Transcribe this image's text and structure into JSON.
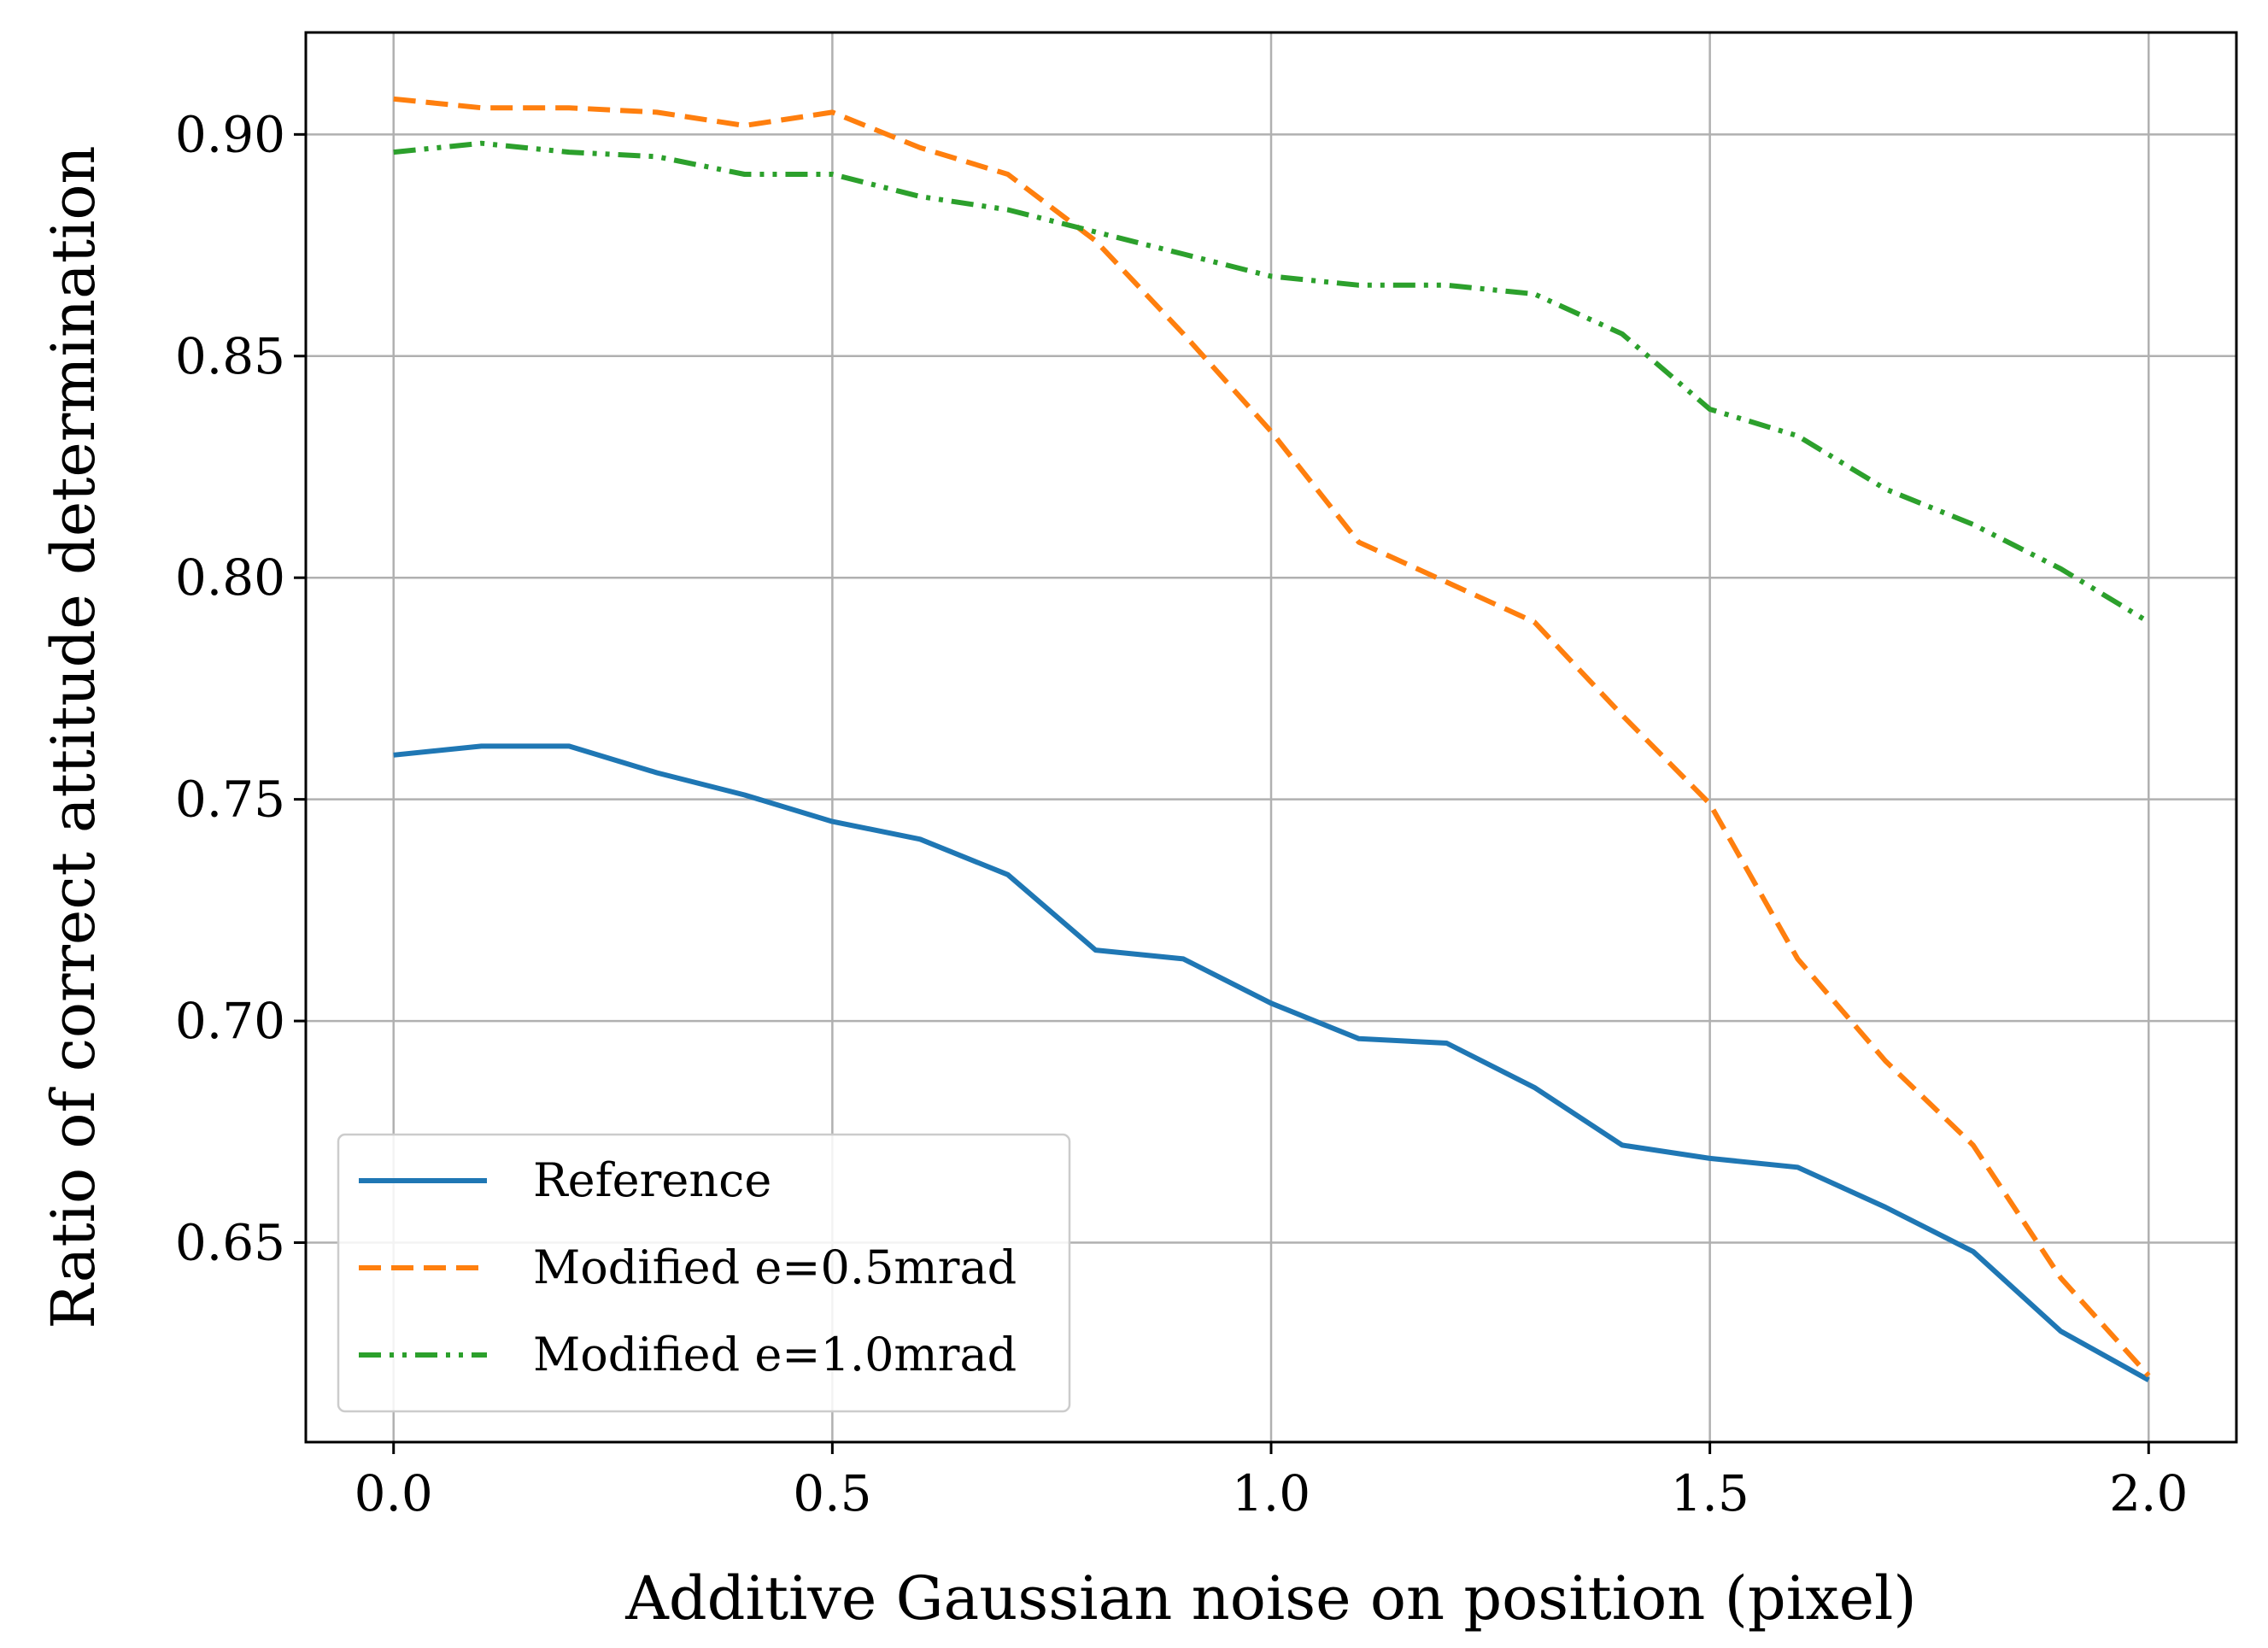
{
  "chart_data": {
    "type": "line",
    "title": "",
    "xlabel": "Additive Gaussian noise on position (pixel)",
    "ylabel": "Ratio of correct attitude determination",
    "xlim": [
      -0.1,
      2.1
    ],
    "ylim": [
      0.605,
      0.923
    ],
    "xticks": [
      0.0,
      0.5,
      1.0,
      1.5,
      2.0
    ],
    "xtick_labels": [
      "0.0",
      "0.5",
      "1.0",
      "1.5",
      "2.0"
    ],
    "yticks": [
      0.65,
      0.7,
      0.75,
      0.8,
      0.85,
      0.9
    ],
    "ytick_labels": [
      "0.65",
      "0.70",
      "0.75",
      "0.80",
      "0.85",
      "0.90"
    ],
    "grid": true,
    "legend_position": "lower-left",
    "x": [
      0.0,
      0.1,
      0.2,
      0.3,
      0.4,
      0.5,
      0.6,
      0.7,
      0.8,
      0.9,
      1.0,
      1.1,
      1.2,
      1.3,
      1.4,
      1.5,
      1.6,
      1.7,
      1.8,
      1.9,
      2.0
    ],
    "series": [
      {
        "name": "Reference",
        "color": "#1f77b4",
        "style": "solid",
        "values": [
          0.76,
          0.762,
          0.762,
          0.756,
          0.751,
          0.745,
          0.741,
          0.733,
          0.716,
          0.714,
          0.704,
          0.696,
          0.695,
          0.685,
          0.672,
          0.669,
          0.667,
          0.658,
          0.648,
          0.63,
          0.619
        ]
      },
      {
        "name": "Modified e=0.5mrad",
        "color": "#ff7f0e",
        "style": "dashed",
        "values": [
          0.908,
          0.906,
          0.906,
          0.905,
          0.902,
          0.905,
          0.897,
          0.891,
          0.876,
          0.855,
          0.833,
          0.808,
          0.799,
          0.79,
          0.769,
          0.749,
          0.714,
          0.691,
          0.672,
          0.642,
          0.62
        ]
      },
      {
        "name": "Modified e=1.0mrad",
        "color": "#2ca02c",
        "style": "dash-dot-dot",
        "values": [
          0.896,
          0.898,
          0.896,
          0.895,
          0.891,
          0.891,
          0.886,
          0.883,
          0.878,
          0.873,
          0.868,
          0.866,
          0.866,
          0.864,
          0.855,
          0.838,
          0.832,
          0.82,
          0.812,
          0.802,
          0.79
        ]
      }
    ]
  }
}
